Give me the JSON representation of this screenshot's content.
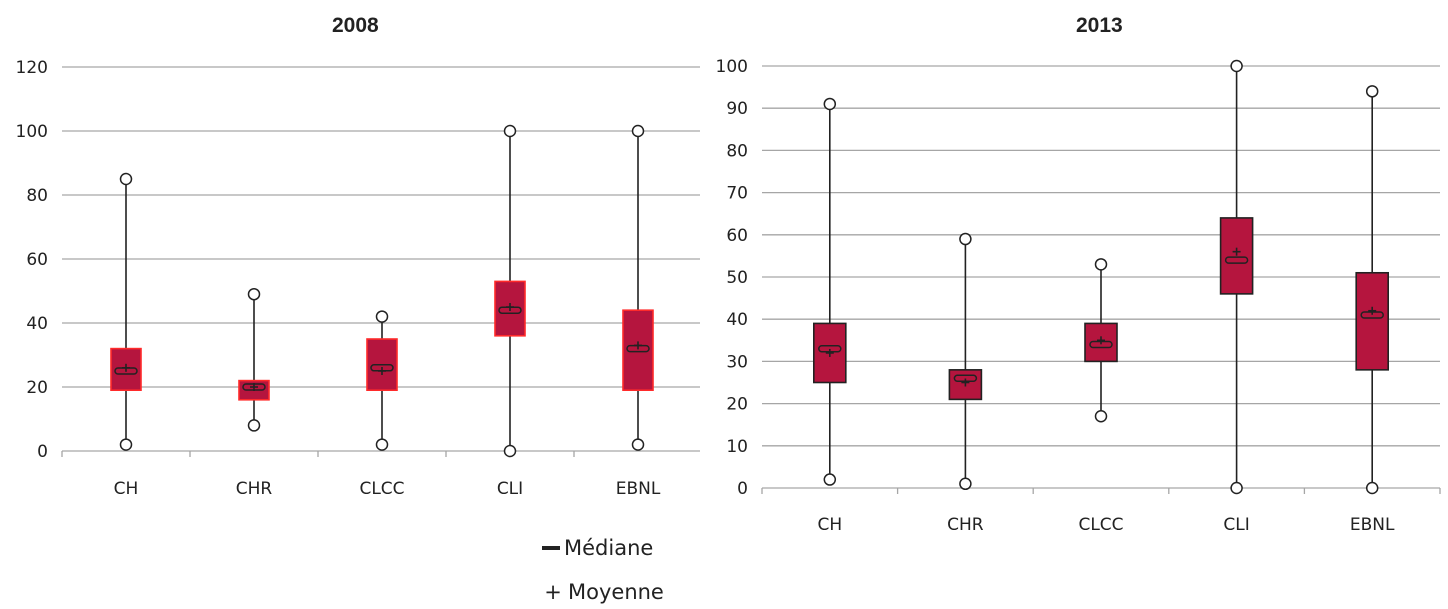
{
  "chart_data": [
    {
      "type": "box",
      "title": "2008",
      "categories": [
        "CH",
        "CHR",
        "CLCC",
        "CLI",
        "EBNL"
      ],
      "ylim": [
        0,
        120
      ],
      "yticks": [
        0,
        20,
        40,
        60,
        80,
        100,
        120
      ],
      "grid": true,
      "box_color": "#b5153e",
      "box_edge_color": "#ff2a2a",
      "boxes": [
        {
          "category": "CH",
          "min": 2,
          "q1": 19,
          "median": 25,
          "q3": 32,
          "max": 85,
          "mean": 26
        },
        {
          "category": "CHR",
          "min": 8,
          "q1": 16,
          "median": 20,
          "q3": 22,
          "max": 49,
          "mean": 20
        },
        {
          "category": "CLCC",
          "min": 2,
          "q1": 19,
          "median": 26,
          "q3": 35,
          "max": 42,
          "mean": 25
        },
        {
          "category": "CLI",
          "min": 0,
          "q1": 36,
          "median": 44,
          "q3": 53,
          "max": 100,
          "mean": 45
        },
        {
          "category": "EBNL",
          "min": 2,
          "q1": 19,
          "median": 32,
          "q3": 44,
          "max": 100,
          "mean": 33
        }
      ]
    },
    {
      "type": "box",
      "title": "2013",
      "categories": [
        "CH",
        "CHR",
        "CLCC",
        "CLI",
        "EBNL"
      ],
      "ylim": [
        0,
        100
      ],
      "yticks": [
        0,
        10,
        20,
        30,
        40,
        50,
        60,
        70,
        80,
        90,
        100
      ],
      "grid": true,
      "box_color": "#b5153e",
      "box_edge_color": "#222222",
      "boxes": [
        {
          "category": "CH",
          "min": 2,
          "q1": 25,
          "median": 33,
          "q3": 39,
          "max": 91,
          "mean": 32
        },
        {
          "category": "CHR",
          "min": 1,
          "q1": 21,
          "median": 26,
          "q3": 28,
          "max": 59,
          "mean": 25
        },
        {
          "category": "CLCC",
          "min": 17,
          "q1": 30,
          "median": 34,
          "q3": 39,
          "max": 53,
          "mean": 35
        },
        {
          "category": "CLI",
          "min": 0,
          "q1": 46,
          "median": 54,
          "q3": 64,
          "max": 100,
          "mean": 56
        },
        {
          "category": "EBNL",
          "min": 0,
          "q1": 28,
          "median": 41,
          "q3": 51,
          "max": 94,
          "mean": 42
        }
      ]
    }
  ],
  "legend": {
    "median_label": "Médiane",
    "mean_symbol": "+",
    "mean_label": "Moyenne"
  }
}
